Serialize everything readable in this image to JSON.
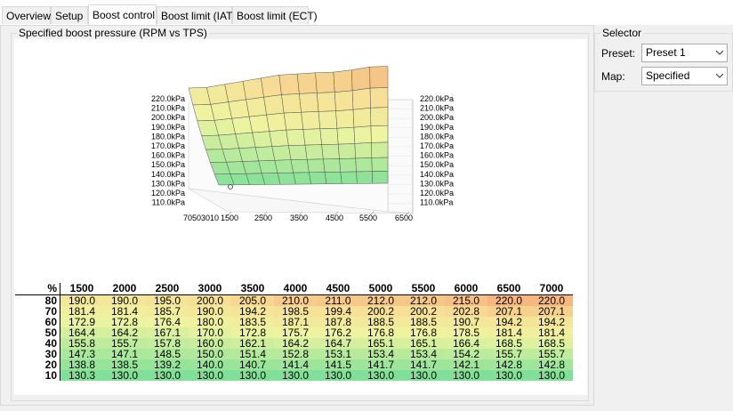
{
  "tabs": [
    {
      "label": "Overview",
      "active": false
    },
    {
      "label": "Setup",
      "active": false
    },
    {
      "label": "Boost control",
      "active": true
    },
    {
      "label": "Boost limit (IAT)",
      "active": false
    },
    {
      "label": "Boost limit (ECT)",
      "active": false
    }
  ],
  "main": {
    "group_title": "Specified boost pressure (RPM vs TPS)"
  },
  "selector": {
    "title": "Selector",
    "preset_label": "Preset:",
    "preset_value": "Preset 1",
    "map_label": "Map:",
    "map_value": "Specified"
  },
  "chart_data": {
    "type": "heatmap",
    "title": "",
    "corner_label": "%",
    "x_label": "",
    "y_label": "",
    "rpm": [
      "1500",
      "2000",
      "2500",
      "3000",
      "3500",
      "4000",
      "4500",
      "5000",
      "5500",
      "6000",
      "6500",
      "7000"
    ],
    "tps": [
      "80",
      "70",
      "60",
      "50",
      "40",
      "30",
      "20",
      "10"
    ],
    "values": [
      [
        "190.0",
        "190.0",
        "195.0",
        "200.0",
        "205.0",
        "210.0",
        "211.0",
        "212.0",
        "212.0",
        "215.0",
        "220.0",
        "220.0"
      ],
      [
        "181.4",
        "181.4",
        "185.7",
        "190.0",
        "194.2",
        "198.5",
        "199.4",
        "200.2",
        "200.2",
        "202.8",
        "207.1",
        "207.1"
      ],
      [
        "172.9",
        "172.8",
        "176.4",
        "180.0",
        "183.5",
        "187.1",
        "187.8",
        "188.5",
        "188.5",
        "190.7",
        "194.2",
        "194.2"
      ],
      [
        "164.4",
        "164.2",
        "167.1",
        "170.0",
        "172.8",
        "175.7",
        "176.2",
        "176.8",
        "176.8",
        "178.5",
        "181.4",
        "181.4"
      ],
      [
        "155.8",
        "155.7",
        "157.8",
        "160.0",
        "162.1",
        "164.2",
        "164.7",
        "165.1",
        "165.1",
        "166.4",
        "168.5",
        "168.5"
      ],
      [
        "147.3",
        "147.1",
        "148.5",
        "150.0",
        "151.4",
        "152.8",
        "153.1",
        "153.4",
        "153.4",
        "154.2",
        "155.7",
        "155.7"
      ],
      [
        "138.8",
        "138.5",
        "139.2",
        "140.0",
        "140.7",
        "141.4",
        "141.5",
        "141.7",
        "141.7",
        "142.1",
        "142.8",
        "142.8"
      ],
      [
        "130.3",
        "130.0",
        "130.0",
        "130.0",
        "130.0",
        "130.0",
        "130.0",
        "130.0",
        "130.0",
        "130.0",
        "130.0",
        "130.0"
      ]
    ],
    "surface": {
      "z_ticks": [
        "220.0kPa",
        "210.0kPa",
        "200.0kPa",
        "190.0kPa",
        "180.0kPa",
        "170.0kPa",
        "160.0kPa",
        "150.0kPa",
        "140.0kPa",
        "130.0kPa",
        "120.0kPa",
        "110.0kPa"
      ],
      "x_ticks_near": "70503010",
      "x_ticks": [
        "1500",
        "2500",
        "3500",
        "4500",
        "5500",
        "6500"
      ],
      "colors": {
        "low": "#7ee8a0",
        "mid": "#f2f5a0",
        "high": "#f6b87a"
      }
    }
  }
}
